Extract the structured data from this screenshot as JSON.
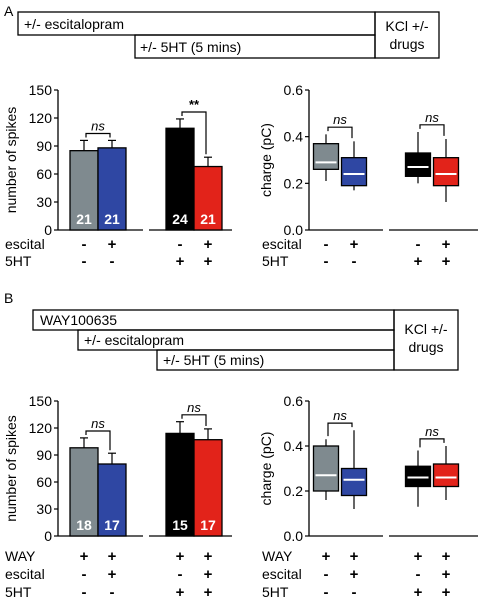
{
  "panels": {
    "A": {
      "letter": "A",
      "protocol": {
        "bars": [
          {
            "label": "+/- escitalopram"
          },
          {
            "label": "+/- 5HT (5 mins)"
          }
        ],
        "kcl_label_line1": "KCl +/-",
        "kcl_label_line2": "drugs"
      }
    },
    "B": {
      "letter": "B",
      "protocol": {
        "bars": [
          {
            "label": "WAY100635"
          },
          {
            "label": "+/- escitalopram"
          },
          {
            "label": "+/- 5HT (5 mins)"
          }
        ],
        "kcl_label_line1": "KCl +/-",
        "kcl_label_line2": "drugs"
      }
    }
  },
  "colors": {
    "gray": "#7f8a8f",
    "blue": "#2f47a3",
    "black": "#000000",
    "red": "#e2231a"
  },
  "chart_data": [
    {
      "id": "A-spikes",
      "type": "bar",
      "ylabel": "number of spikes",
      "ylim": [
        0,
        150
      ],
      "yticks": [
        "0",
        "30",
        "60",
        "90",
        "120",
        "150"
      ],
      "values": [
        85,
        88,
        109,
        68
      ],
      "errors": [
        11,
        8,
        10,
        10
      ],
      "counts": [
        "21",
        "21",
        "24",
        "21"
      ],
      "colors": [
        "gray",
        "blue",
        "black",
        "red"
      ],
      "significance": [
        {
          "pair": [
            0,
            1
          ],
          "label": "ns"
        },
        {
          "pair": [
            2,
            3
          ],
          "label": "**"
        }
      ],
      "conditions": [
        {
          "name": "escital",
          "signs": [
            "-",
            "+",
            "-",
            "+"
          ]
        },
        {
          "name": "5HT",
          "signs": [
            "-",
            "-",
            "+",
            "+"
          ]
        }
      ]
    },
    {
      "id": "A-charge",
      "type": "box",
      "ylabel": "charge (pC)",
      "ylim": [
        0,
        0.6
      ],
      "yticks": [
        "0.0",
        "0.2",
        "0.4",
        "0.6"
      ],
      "boxes": [
        {
          "color": "gray",
          "whisker_low": 0.21,
          "q1": 0.26,
          "median": 0.29,
          "q3": 0.37,
          "whisker_high": 0.41
        },
        {
          "color": "blue",
          "whisker_low": 0.17,
          "q1": 0.19,
          "median": 0.24,
          "q3": 0.31,
          "whisker_high": 0.38
        },
        {
          "color": "black",
          "whisker_low": 0.2,
          "q1": 0.23,
          "median": 0.27,
          "q3": 0.33,
          "whisker_high": 0.42
        },
        {
          "color": "red",
          "whisker_low": 0.12,
          "q1": 0.19,
          "median": 0.24,
          "q3": 0.31,
          "whisker_high": 0.39
        }
      ],
      "significance": [
        {
          "pair": [
            0,
            1
          ],
          "label": "ns"
        },
        {
          "pair": [
            2,
            3
          ],
          "label": "ns"
        }
      ],
      "conditions": [
        {
          "name": "escital",
          "signs": [
            "-",
            "+",
            "-",
            "+"
          ]
        },
        {
          "name": "5HT",
          "signs": [
            "-",
            "-",
            "+",
            "+"
          ]
        }
      ]
    },
    {
      "id": "B-spikes",
      "type": "bar",
      "ylabel": "number of spikes",
      "ylim": [
        0,
        150
      ],
      "yticks": [
        "0",
        "30",
        "60",
        "90",
        "120",
        "150"
      ],
      "values": [
        98,
        80,
        114,
        107
      ],
      "errors": [
        11,
        12,
        13,
        12
      ],
      "counts": [
        "18",
        "17",
        "15",
        "17"
      ],
      "colors": [
        "gray",
        "blue",
        "black",
        "red"
      ],
      "significance": [
        {
          "pair": [
            0,
            1
          ],
          "label": "ns"
        },
        {
          "pair": [
            2,
            3
          ],
          "label": "ns"
        }
      ],
      "conditions": [
        {
          "name": "WAY",
          "signs": [
            "+",
            "+",
            "+",
            "+"
          ]
        },
        {
          "name": "escital",
          "signs": [
            "-",
            "+",
            "-",
            "+"
          ]
        },
        {
          "name": "5HT",
          "signs": [
            "-",
            "-",
            "+",
            "+"
          ]
        }
      ]
    },
    {
      "id": "B-charge",
      "type": "box",
      "ylabel": "charge (pC)",
      "ylim": [
        0,
        0.6
      ],
      "yticks": [
        "0.0",
        "0.2",
        "0.4",
        "0.6"
      ],
      "boxes": [
        {
          "color": "gray",
          "whisker_low": 0.16,
          "q1": 0.2,
          "median": 0.27,
          "q3": 0.4,
          "whisker_high": 0.43
        },
        {
          "color": "blue",
          "whisker_low": 0.12,
          "q1": 0.18,
          "median": 0.25,
          "q3": 0.3,
          "whisker_high": 0.47
        },
        {
          "color": "black",
          "whisker_low": 0.13,
          "q1": 0.22,
          "median": 0.26,
          "q3": 0.31,
          "whisker_high": 0.38
        },
        {
          "color": "red",
          "whisker_low": 0.16,
          "q1": 0.22,
          "median": 0.26,
          "q3": 0.32,
          "whisker_high": 0.4
        }
      ],
      "significance": [
        {
          "pair": [
            0,
            1
          ],
          "label": "ns"
        },
        {
          "pair": [
            2,
            3
          ],
          "label": "ns"
        }
      ],
      "conditions": [
        {
          "name": "WAY",
          "signs": [
            "+",
            "+",
            "+",
            "+"
          ]
        },
        {
          "name": "escital",
          "signs": [
            "-",
            "+",
            "-",
            "+"
          ]
        },
        {
          "name": "5HT",
          "signs": [
            "-",
            "-",
            "+",
            "+"
          ]
        }
      ]
    }
  ]
}
